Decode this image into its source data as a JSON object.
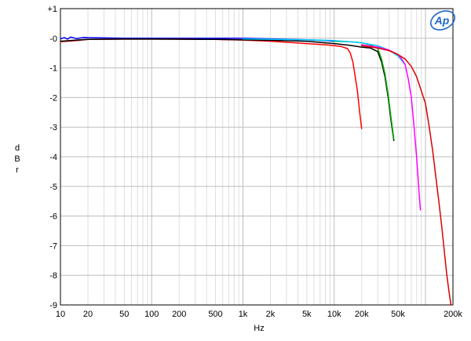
{
  "chart_data": {
    "type": "line",
    "title": "",
    "xlabel": "Hz",
    "ylabel": "dBr",
    "ylabel_letters": [
      "d",
      "B",
      "r"
    ],
    "xscale": "log",
    "xlim": [
      10,
      200000
    ],
    "ylim": [
      -9,
      1
    ],
    "grid": true,
    "legend": "none",
    "logo": "Ap",
    "x_ticks": [
      10,
      20,
      50,
      100,
      200,
      500,
      1000,
      2000,
      5000,
      10000,
      20000,
      50000,
      200000
    ],
    "x_tick_labels": [
      "10",
      "20",
      "50",
      "100",
      "200",
      "500",
      "1k",
      "2k",
      "5k",
      "10k",
      "20k",
      "50k",
      "200k"
    ],
    "y_ticks": [
      1,
      0,
      -1,
      -2,
      -3,
      -4,
      -5,
      -6,
      -7,
      -8,
      -9
    ],
    "y_tick_labels": [
      "+1",
      "-0",
      "-1",
      "-2",
      "-3",
      "-4",
      "-5",
      "-6",
      "-7",
      "-8",
      "-9"
    ],
    "series": [
      {
        "color": "#0000ff",
        "x": [
          10,
          11,
          12,
          13,
          15,
          18,
          20,
          50,
          100,
          200,
          500,
          1000,
          2000,
          5000,
          8000,
          10000
        ],
        "y": [
          -0.02,
          0.02,
          -0.03,
          0.04,
          -0.01,
          0.03,
          0.02,
          0.0,
          0.0,
          0.0,
          0.0,
          0.0,
          -0.02,
          -0.05,
          -0.08,
          -0.1
        ]
      },
      {
        "color": "#ff0000",
        "x": [
          10,
          15,
          20,
          50,
          100,
          200,
          500,
          1000,
          2000,
          5000,
          8000,
          10000,
          12000,
          14000,
          15000,
          16000,
          17000,
          18000,
          19000,
          20000
        ],
        "y": [
          -0.12,
          -0.08,
          -0.04,
          -0.03,
          -0.03,
          -0.03,
          -0.04,
          -0.06,
          -0.1,
          -0.18,
          -0.22,
          -0.25,
          -0.28,
          -0.35,
          -0.5,
          -0.8,
          -1.3,
          -1.8,
          -2.5,
          -3.05
        ]
      },
      {
        "color": "#000000",
        "x": [
          10,
          15,
          20,
          50,
          100,
          500,
          1000,
          2000,
          5000,
          10000,
          15000,
          20000,
          25000,
          30000,
          33000,
          36000,
          39000,
          42000,
          45000
        ],
        "y": [
          -0.1,
          -0.06,
          -0.04,
          -0.03,
          -0.03,
          -0.04,
          -0.05,
          -0.07,
          -0.1,
          -0.18,
          -0.24,
          -0.3,
          -0.33,
          -0.45,
          -0.8,
          -1.3,
          -2.0,
          -2.8,
          -3.45
        ]
      },
      {
        "color": "#00aa00",
        "x": [
          10000,
          15000,
          20000,
          25000,
          30000,
          33000,
          36000,
          39000,
          42000,
          45000
        ],
        "y": [
          -0.1,
          -0.12,
          -0.15,
          -0.22,
          -0.35,
          -0.7,
          -1.2,
          -1.9,
          -2.7,
          -3.4
        ]
      },
      {
        "color": "#00ccff",
        "x": [
          1000,
          5000,
          10000,
          20000,
          30000,
          40000,
          50000,
          55000,
          60000
        ],
        "y": [
          -0.02,
          -0.05,
          -0.08,
          -0.15,
          -0.25,
          -0.4,
          -0.6,
          -0.75,
          -0.9
        ]
      },
      {
        "color": "#ff00ff",
        "x": [
          20000,
          30000,
          40000,
          50000,
          55000,
          60000,
          65000,
          70000,
          75000,
          80000,
          85000,
          88000
        ],
        "y": [
          -0.22,
          -0.3,
          -0.4,
          -0.55,
          -0.7,
          -0.9,
          -1.4,
          -2.0,
          -3.0,
          -4.0,
          -5.2,
          -5.8
        ]
      },
      {
        "color": "#dd0000",
        "x": [
          20000,
          30000,
          40000,
          50000,
          60000,
          70000,
          80000,
          100000,
          110000,
          120000,
          130000,
          140000,
          150000,
          160000,
          170000,
          180000,
          190000
        ],
        "y": [
          -0.25,
          -0.33,
          -0.42,
          -0.55,
          -0.7,
          -0.95,
          -1.3,
          -2.2,
          -3.0,
          -3.8,
          -4.7,
          -5.5,
          -6.3,
          -7.1,
          -7.9,
          -8.5,
          -9.0
        ]
      }
    ]
  }
}
